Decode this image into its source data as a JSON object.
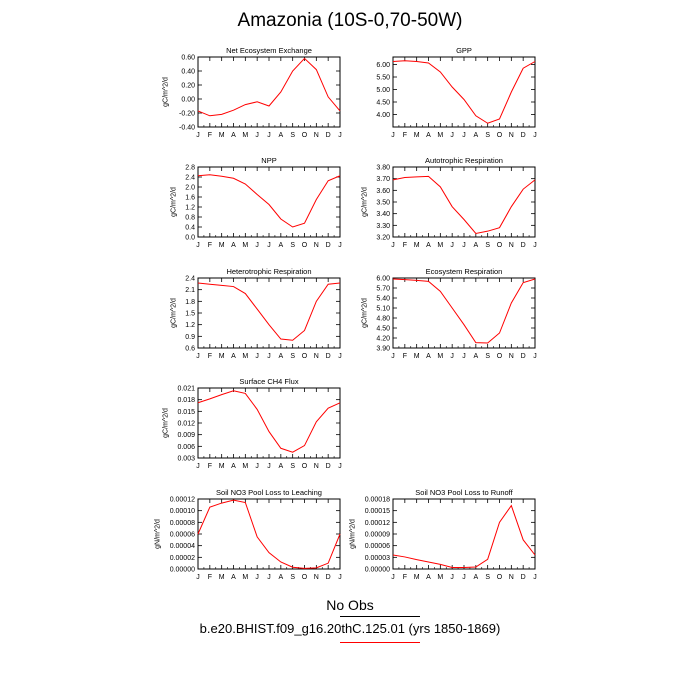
{
  "title": "Amazonia (10S-0,70-50W)",
  "legend": {
    "obs_label": "No Obs",
    "case_label": "b.e20.BHIST.f09_g16.20thC.125.01 (yrs 1850-1869)",
    "obs_color": "#000000",
    "case_color": "#ff0000"
  },
  "line_color": "#ff0000",
  "chart_data": [
    {
      "type": "line",
      "title": "Net Ecosystem Exchange",
      "ylabel": "gC/m^2/d",
      "xlabel": "",
      "categories": [
        "J",
        "F",
        "M",
        "A",
        "M",
        "J",
        "J",
        "A",
        "S",
        "O",
        "N",
        "D",
        "J"
      ],
      "values": [
        -0.17,
        -0.24,
        -0.22,
        -0.16,
        -0.08,
        -0.04,
        -0.1,
        0.1,
        0.4,
        0.58,
        0.42,
        0.03,
        -0.17
      ],
      "ylim": [
        -0.4,
        0.6
      ],
      "yticks": [
        -0.4,
        -0.2,
        0.0,
        0.2,
        0.4,
        0.6
      ],
      "ytick_labels": [
        "-0.40",
        "-0.20",
        "0.00",
        "0.20",
        "0.40",
        "0.60"
      ]
    },
    {
      "type": "line",
      "title": "GPP",
      "ylabel": "",
      "xlabel": "",
      "categories": [
        "J",
        "F",
        "M",
        "A",
        "M",
        "J",
        "J",
        "A",
        "S",
        "O",
        "N",
        "D",
        "J"
      ],
      "values": [
        6.12,
        6.15,
        6.12,
        6.06,
        5.7,
        5.1,
        4.6,
        3.95,
        3.65,
        3.82,
        4.9,
        5.85,
        6.12
      ],
      "ylim": [
        3.5,
        6.3
      ],
      "yticks": [
        4.0,
        4.5,
        5.0,
        5.5,
        6.0
      ],
      "ytick_labels": [
        "4.00",
        "4.50",
        "5.00",
        "5.50",
        "6.00"
      ]
    },
    {
      "type": "line",
      "title": "NPP",
      "ylabel": "gC/m^2/d",
      "xlabel": "",
      "categories": [
        "J",
        "F",
        "M",
        "A",
        "M",
        "J",
        "J",
        "A",
        "S",
        "O",
        "N",
        "D",
        "J"
      ],
      "values": [
        2.45,
        2.49,
        2.43,
        2.35,
        2.12,
        1.7,
        1.3,
        0.72,
        0.4,
        0.55,
        1.5,
        2.25,
        2.45
      ],
      "ylim": [
        0.0,
        2.8
      ],
      "yticks": [
        0.0,
        0.4,
        0.8,
        1.2,
        1.6,
        2.0,
        2.4,
        2.8
      ],
      "ytick_labels": [
        "0.0",
        "0.4",
        "0.8",
        "1.2",
        "1.6",
        "2.0",
        "2.4",
        "2.8"
      ]
    },
    {
      "type": "line",
      "title": "Autotrophic Respiration",
      "ylabel": "gC/m^2/d",
      "xlabel": "",
      "categories": [
        "J",
        "F",
        "M",
        "A",
        "M",
        "J",
        "J",
        "A",
        "S",
        "O",
        "N",
        "D",
        "J"
      ],
      "values": [
        3.69,
        3.71,
        3.715,
        3.72,
        3.63,
        3.46,
        3.35,
        3.23,
        3.25,
        3.28,
        3.46,
        3.61,
        3.69
      ],
      "ylim": [
        3.2,
        3.8
      ],
      "yticks": [
        3.2,
        3.3,
        3.4,
        3.5,
        3.6,
        3.7,
        3.8
      ],
      "ytick_labels": [
        "3.20",
        "3.30",
        "3.40",
        "3.50",
        "3.60",
        "3.70",
        "3.80"
      ]
    },
    {
      "type": "line",
      "title": "Heterotrophic Respiration",
      "ylabel": "gC/m^2/d",
      "xlabel": "",
      "categories": [
        "J",
        "F",
        "M",
        "A",
        "M",
        "J",
        "J",
        "A",
        "S",
        "O",
        "N",
        "D",
        "J"
      ],
      "values": [
        2.27,
        2.24,
        2.21,
        2.18,
        2.0,
        1.6,
        1.2,
        0.83,
        0.8,
        1.05,
        1.8,
        2.24,
        2.27
      ],
      "ylim": [
        0.6,
        2.4
      ],
      "yticks": [
        0.6,
        0.9,
        1.2,
        1.5,
        1.8,
        2.1,
        2.4
      ],
      "ytick_labels": [
        "0.6",
        "0.9",
        "1.2",
        "1.5",
        "1.8",
        "2.1",
        "2.4"
      ]
    },
    {
      "type": "line",
      "title": "Ecosystem Respiration",
      "ylabel": "gC/m^2/d",
      "xlabel": "",
      "categories": [
        "J",
        "F",
        "M",
        "A",
        "M",
        "J",
        "J",
        "A",
        "S",
        "O",
        "N",
        "D",
        "J"
      ],
      "values": [
        5.97,
        5.95,
        5.93,
        5.9,
        5.6,
        5.1,
        4.6,
        4.06,
        4.05,
        4.35,
        5.25,
        5.86,
        5.97
      ],
      "ylim": [
        3.9,
        6.0
      ],
      "yticks": [
        3.9,
        4.2,
        4.5,
        4.8,
        5.1,
        5.4,
        5.7,
        6.0
      ],
      "ytick_labels": [
        "3.90",
        "4.20",
        "4.50",
        "4.80",
        "5.10",
        "5.40",
        "5.70",
        "6.00"
      ]
    },
    {
      "type": "line",
      "title": "Surface CH4 Flux",
      "ylabel": "gC/m^2/d",
      "xlabel": "",
      "categories": [
        "J",
        "F",
        "M",
        "A",
        "M",
        "J",
        "J",
        "A",
        "S",
        "O",
        "N",
        "D",
        "J"
      ],
      "values": [
        0.0172,
        0.0182,
        0.0193,
        0.0203,
        0.0196,
        0.0155,
        0.0098,
        0.0055,
        0.0045,
        0.0062,
        0.0123,
        0.0158,
        0.0172
      ],
      "ylim": [
        0.003,
        0.021
      ],
      "yticks": [
        0.003,
        0.006,
        0.009,
        0.012,
        0.015,
        0.018,
        0.021
      ],
      "ytick_labels": [
        "0.003",
        "0.006",
        "0.009",
        "0.012",
        "0.015",
        "0.018",
        "0.021"
      ]
    },
    {
      "type": "line",
      "title": "Soil NO3 Pool Loss to Leaching",
      "ylabel": "gN/m^2/d",
      "xlabel": "",
      "categories": [
        "J",
        "F",
        "M",
        "A",
        "M",
        "J",
        "J",
        "A",
        "S",
        "O",
        "N",
        "D",
        "J"
      ],
      "values": [
        6e-05,
        0.000106,
        0.000113,
        0.000118,
        0.000114,
        5.5e-05,
        2.8e-05,
        1.2e-05,
        3e-06,
        1e-06,
        2e-06,
        1e-05,
        6e-05
      ],
      "ylim": [
        0,
        0.00012
      ],
      "yticks": [
        0,
        2e-05,
        4e-05,
        6e-05,
        8e-05,
        0.0001,
        0.00012
      ],
      "ytick_labels": [
        "0.00000",
        "0.00002",
        "0.00004",
        "0.00006",
        "0.00008",
        "0.00010",
        "0.00012"
      ]
    },
    {
      "type": "line",
      "title": "Soil NO3 Pool Loss to Runoff",
      "ylabel": "gN/m^2/d",
      "xlabel": "",
      "categories": [
        "J",
        "F",
        "M",
        "A",
        "M",
        "J",
        "J",
        "A",
        "S",
        "O",
        "N",
        "D",
        "J"
      ],
      "values": [
        3.6e-05,
        3.1e-05,
        2.4e-05,
        1.8e-05,
        1.2e-05,
        4e-06,
        4e-06,
        5e-06,
        2.5e-05,
        0.00012,
        0.000163,
        7.5e-05,
        3.6e-05
      ],
      "ylim": [
        0,
        0.00018
      ],
      "yticks": [
        0,
        3e-05,
        6e-05,
        9e-05,
        0.00012,
        0.00015,
        0.00018
      ],
      "ytick_labels": [
        "0.00000",
        "0.00003",
        "0.00006",
        "0.00009",
        "0.00012",
        "0.00015",
        "0.00018"
      ]
    }
  ]
}
